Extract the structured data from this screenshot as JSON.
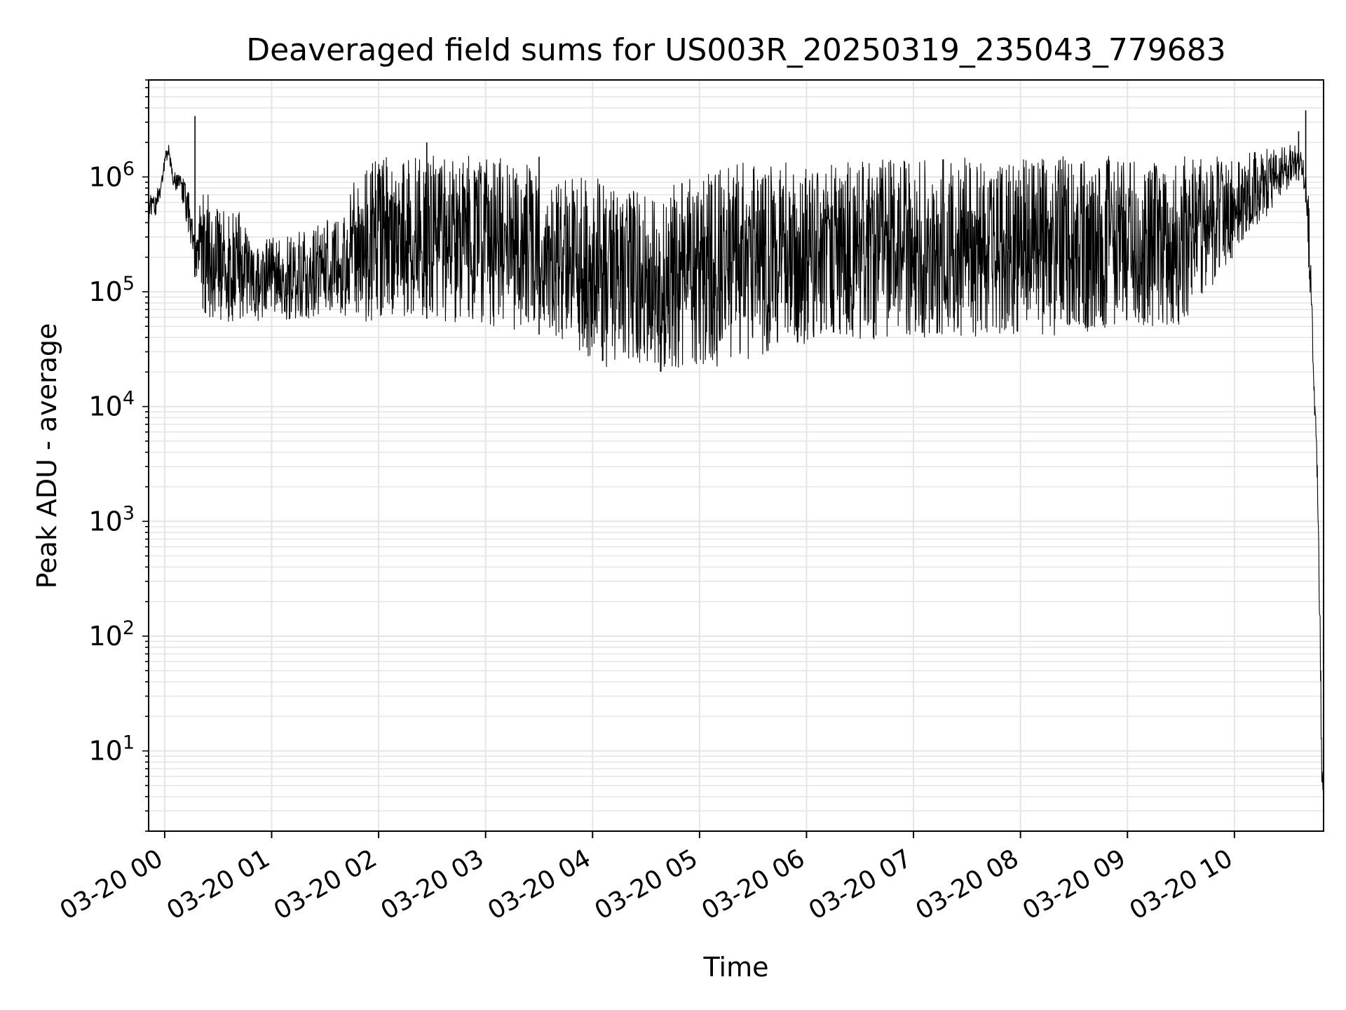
{
  "chart_data": {
    "type": "line",
    "title": "Deaveraged field sums for US003R_20250319_235043_779683",
    "xlabel": "Time",
    "ylabel": "Peak ADU - average",
    "x_type": "time",
    "xlim": [
      "2025-03-19T23:51:00",
      "2025-03-20T10:50:00"
    ],
    "ylim": [
      2,
      7000000
    ],
    "yscale": "log",
    "grid": true,
    "legend": "none",
    "line_color": "#000000",
    "grid_color": "#e5e5e5",
    "x_ticks": [
      {
        "t": "2025-03-20T00:00:00",
        "label": "03-20 00"
      },
      {
        "t": "2025-03-20T01:00:00",
        "label": "03-20 01"
      },
      {
        "t": "2025-03-20T02:00:00",
        "label": "03-20 02"
      },
      {
        "t": "2025-03-20T03:00:00",
        "label": "03-20 03"
      },
      {
        "t": "2025-03-20T04:00:00",
        "label": "03-20 04"
      },
      {
        "t": "2025-03-20T05:00:00",
        "label": "03-20 05"
      },
      {
        "t": "2025-03-20T06:00:00",
        "label": "03-20 06"
      },
      {
        "t": "2025-03-20T07:00:00",
        "label": "03-20 07"
      },
      {
        "t": "2025-03-20T08:00:00",
        "label": "03-20 08"
      },
      {
        "t": "2025-03-20T09:00:00",
        "label": "03-20 09"
      },
      {
        "t": "2025-03-20T10:00:00",
        "label": "03-20 10"
      }
    ],
    "y_ticks": [
      {
        "value": 10,
        "base": "10",
        "exp": "1"
      },
      {
        "value": 100,
        "base": "10",
        "exp": "2"
      },
      {
        "value": 1000,
        "base": "10",
        "exp": "3"
      },
      {
        "value": 10000,
        "base": "10",
        "exp": "4"
      },
      {
        "value": 100000,
        "base": "10",
        "exp": "5"
      },
      {
        "value": 1000000,
        "base": "10",
        "exp": "6"
      }
    ],
    "series": [
      {
        "x": [
          "2025-03-19T23:51:00",
          "2025-03-19T23:52:00",
          "2025-03-19T23:54:00",
          "2025-03-19T23:56:00",
          "2025-03-19T23:58:00",
          "2025-03-20T00:00:00",
          "2025-03-20T00:02:00",
          "2025-03-20T00:04:00",
          "2025-03-20T00:06:00",
          "2025-03-20T00:08:00",
          "2025-03-20T00:10:00",
          "2025-03-20T00:12:00",
          "2025-03-20T00:14:00",
          "2025-03-20T00:16:00",
          "2025-03-20T00:18:00",
          "2025-03-20T00:20:00",
          "2025-03-20T00:22:00",
          "2025-03-20T00:24:00",
          "2025-03-20T00:26:00",
          "2025-03-20T00:30:00",
          "2025-03-20T00:40:00",
          "2025-03-20T00:50:00",
          "2025-03-20T01:00:00",
          "2025-03-20T01:15:00",
          "2025-03-20T01:30:00",
          "2025-03-20T01:45:00",
          "2025-03-20T02:00:00",
          "2025-03-20T02:20:00",
          "2025-03-20T02:40:00",
          "2025-03-20T03:00:00",
          "2025-03-20T03:20:00",
          "2025-03-20T03:40:00",
          "2025-03-20T04:00:00",
          "2025-03-20T04:20:00",
          "2025-03-20T04:40:00",
          "2025-03-20T05:00:00",
          "2025-03-20T05:20:00",
          "2025-03-20T05:40:00",
          "2025-03-20T06:00:00",
          "2025-03-20T06:30:00",
          "2025-03-20T07:00:00",
          "2025-03-20T07:30:00",
          "2025-03-20T08:00:00",
          "2025-03-20T08:30:00",
          "2025-03-20T09:00:00",
          "2025-03-20T09:30:00",
          "2025-03-20T10:00:00",
          "2025-03-20T10:10:00",
          "2025-03-20T10:20:00",
          "2025-03-20T10:30:00",
          "2025-03-20T10:35:00",
          "2025-03-20T10:38:00",
          "2025-03-20T10:40:00",
          "2025-03-20T10:42:00",
          "2025-03-20T10:44:00",
          "2025-03-20T10:45:00",
          "2025-03-20T10:46:00",
          "2025-03-20T10:47:00",
          "2025-03-20T10:48:00",
          "2025-03-20T10:49:00",
          "2025-03-20T10:50:00"
        ],
        "low": [
          300000,
          400000,
          450000,
          500000,
          700000,
          1200000,
          1500000,
          900000,
          700000,
          800000,
          600000,
          400000,
          250000,
          150000,
          120000,
          80000,
          65000,
          60000,
          60000,
          55000,
          55000,
          55000,
          58000,
          55000,
          60000,
          55000,
          55000,
          60000,
          55000,
          50000,
          45000,
          40000,
          22000,
          21000,
          20000,
          21000,
          24000,
          30000,
          35000,
          38000,
          40000,
          40000,
          42000,
          40000,
          50000,
          50000,
          200000,
          300000,
          500000,
          800000,
          900000,
          1000000,
          600000,
          100000,
          15000,
          8000,
          3000,
          800,
          60,
          4,
          4
        ],
        "high": [
          600000,
          700000,
          700000,
          800000,
          1000000,
          1500000,
          2100000,
          1300000,
          1100000,
          1100000,
          1000000,
          900000,
          700000,
          500000,
          300000,
          700000,
          800000,
          700000,
          700000,
          500000,
          600000,
          250000,
          300000,
          350000,
          400000,
          900000,
          1500000,
          1550000,
          1550000,
          1500000,
          1400000,
          1100000,
          1000000,
          800000,
          800000,
          1100000,
          1400000,
          1350000,
          1400000,
          1400000,
          1450000,
          1500000,
          1500000,
          1550000,
          1550000,
          1550000,
          1550000,
          1650000,
          1800000,
          2000000,
          2000000,
          1600000,
          1200000,
          600000,
          60000,
          15000,
          6000,
          2000,
          200,
          10,
          4
        ]
      }
    ],
    "spikes": [
      {
        "x": "2025-03-20T00:17:00",
        "y": 3400000
      },
      {
        "x": "2025-03-20T02:27:00",
        "y": 2000000
      },
      {
        "x": "2025-03-20T03:30:00",
        "y": 1500000
      },
      {
        "x": "2025-03-20T10:36:00",
        "y": 2500000
      },
      {
        "x": "2025-03-20T10:40:00",
        "y": 3800000
      }
    ]
  }
}
